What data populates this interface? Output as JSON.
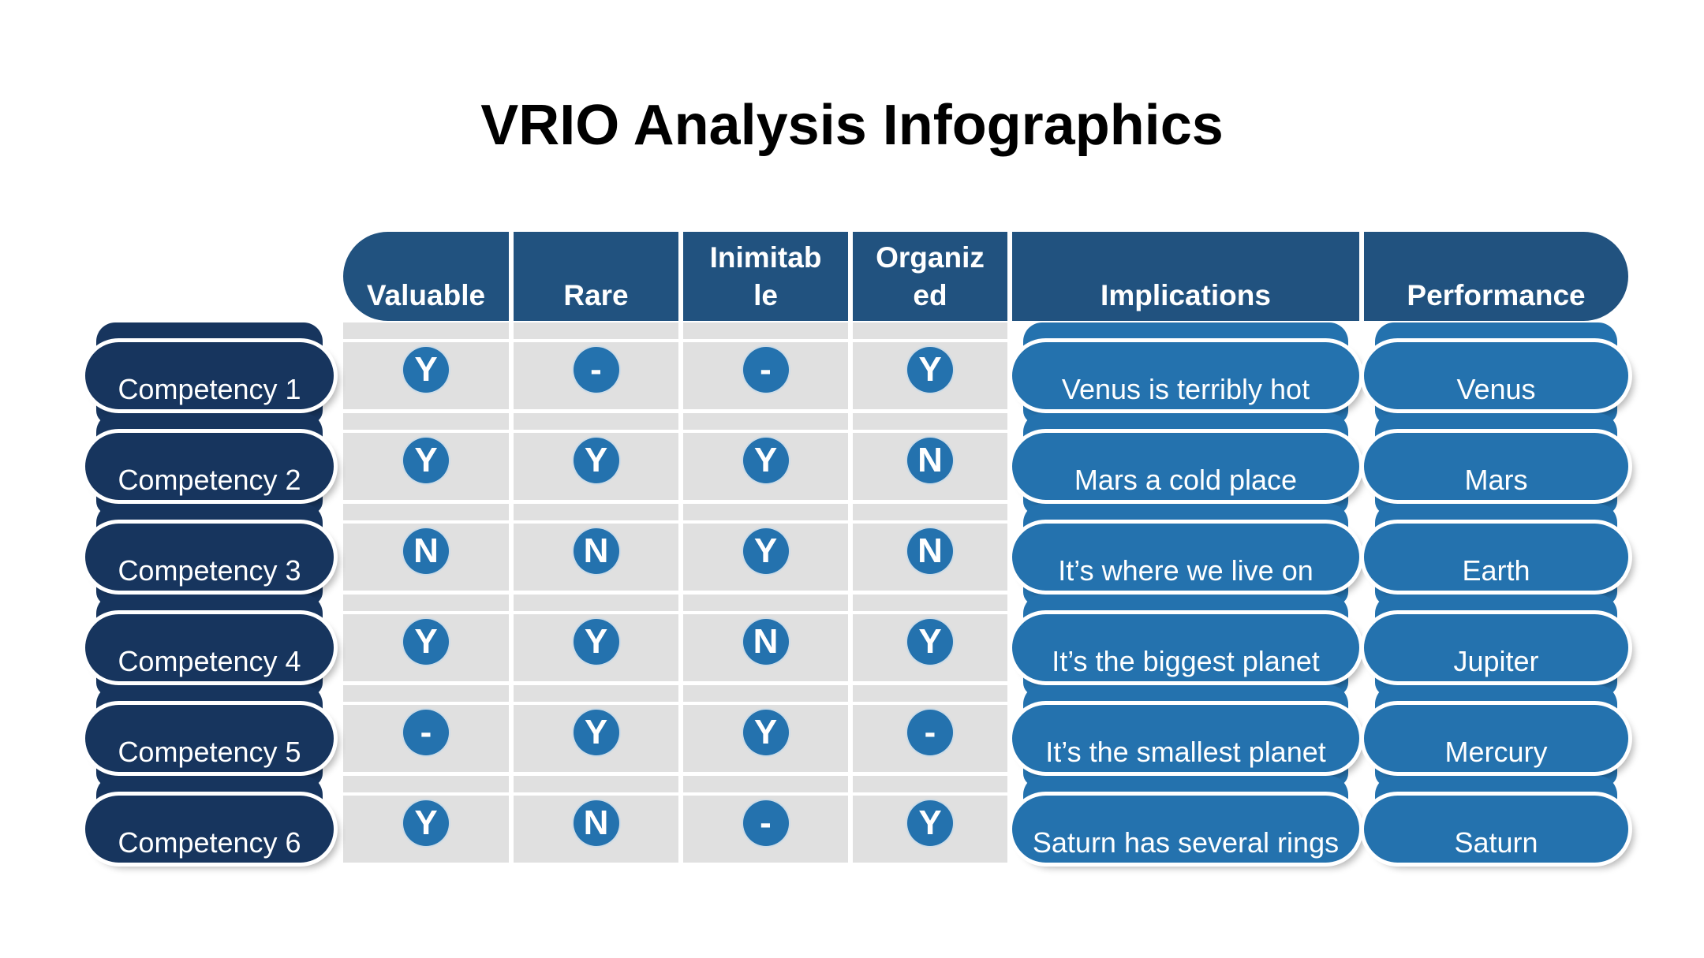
{
  "title": "VRIO Analysis Infographics",
  "colors": {
    "header_blue": "#21527F",
    "competency_navy": "#17355E",
    "pill_blue": "#2472AE",
    "grid_gray": "#E0E0E0",
    "text_white": "#FFFFFF",
    "title_black": "#000000"
  },
  "table": {
    "header": {
      "columns": [
        {
          "id": "valuable",
          "lines": [
            "Valuable"
          ]
        },
        {
          "id": "rare",
          "lines": [
            "Rare"
          ]
        },
        {
          "id": "inimitable",
          "lines": [
            "Inimitab",
            "le"
          ]
        },
        {
          "id": "organized",
          "lines": [
            "Organiz",
            "ed"
          ]
        },
        {
          "id": "implications",
          "lines": [
            "Implications"
          ]
        },
        {
          "id": "performance",
          "lines": [
            "Performance"
          ]
        }
      ]
    },
    "legend": {
      "yes": "Y",
      "no": "N",
      "neutral": "-"
    },
    "rows": [
      {
        "competency": "Competency 1",
        "valuable": "Y",
        "rare": "-",
        "inimitable": "-",
        "organized": "Y",
        "implication": "Venus is terribly hot",
        "performance": "Venus"
      },
      {
        "competency": "Competency 2",
        "valuable": "Y",
        "rare": "Y",
        "inimitable": "Y",
        "organized": "N",
        "implication": "Mars a cold place",
        "performance": "Mars"
      },
      {
        "competency": "Competency 3",
        "valuable": "N",
        "rare": "N",
        "inimitable": "Y",
        "organized": "N",
        "implication": "It’s where we live on",
        "performance": "Earth"
      },
      {
        "competency": "Competency 4",
        "valuable": "Y",
        "rare": "Y",
        "inimitable": "N",
        "organized": "Y",
        "implication": "It’s the biggest planet",
        "performance": "Jupiter"
      },
      {
        "competency": "Competency 5",
        "valuable": "-",
        "rare": "Y",
        "inimitable": "Y",
        "organized": "-",
        "implication": "It’s the smallest planet",
        "performance": "Mercury"
      },
      {
        "competency": "Competency 6",
        "valuable": "Y",
        "rare": "N",
        "inimitable": "-",
        "organized": "Y",
        "implication": "Saturn has several rings",
        "performance": "Saturn"
      }
    ]
  }
}
